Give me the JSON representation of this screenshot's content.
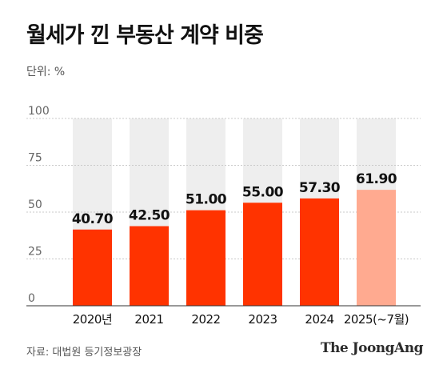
{
  "title": "월세가 낀 부동산 계약 비중",
  "unit_label": "단위: %",
  "source": "자료: 대법원 등기정보광장",
  "logo_text": "The JoongAng",
  "colors": {
    "bar": "#ff3300",
    "bar_highlight": "#ffaa90",
    "grid": "#c8c8c8",
    "track": "#eeeeee",
    "axis_text": "#666666",
    "category_text": "#111111"
  },
  "chart_data": {
    "type": "bar",
    "title": "월세가 낀 부동산 계약 비중",
    "ylabel": "단위: %",
    "xlabel": "",
    "categories": [
      "2020년",
      "2021",
      "2022",
      "2023",
      "2024",
      "2025(~7월)"
    ],
    "values": [
      40.7,
      42.5,
      51.0,
      55.0,
      57.3,
      61.9
    ],
    "value_labels": [
      "40.70",
      "42.50",
      "51.00",
      "55.00",
      "57.30",
      "61.90"
    ],
    "yticks": [
      0,
      25,
      50,
      75,
      100
    ],
    "ylim": [
      0,
      100
    ],
    "grid": true,
    "highlight_index": 5
  }
}
